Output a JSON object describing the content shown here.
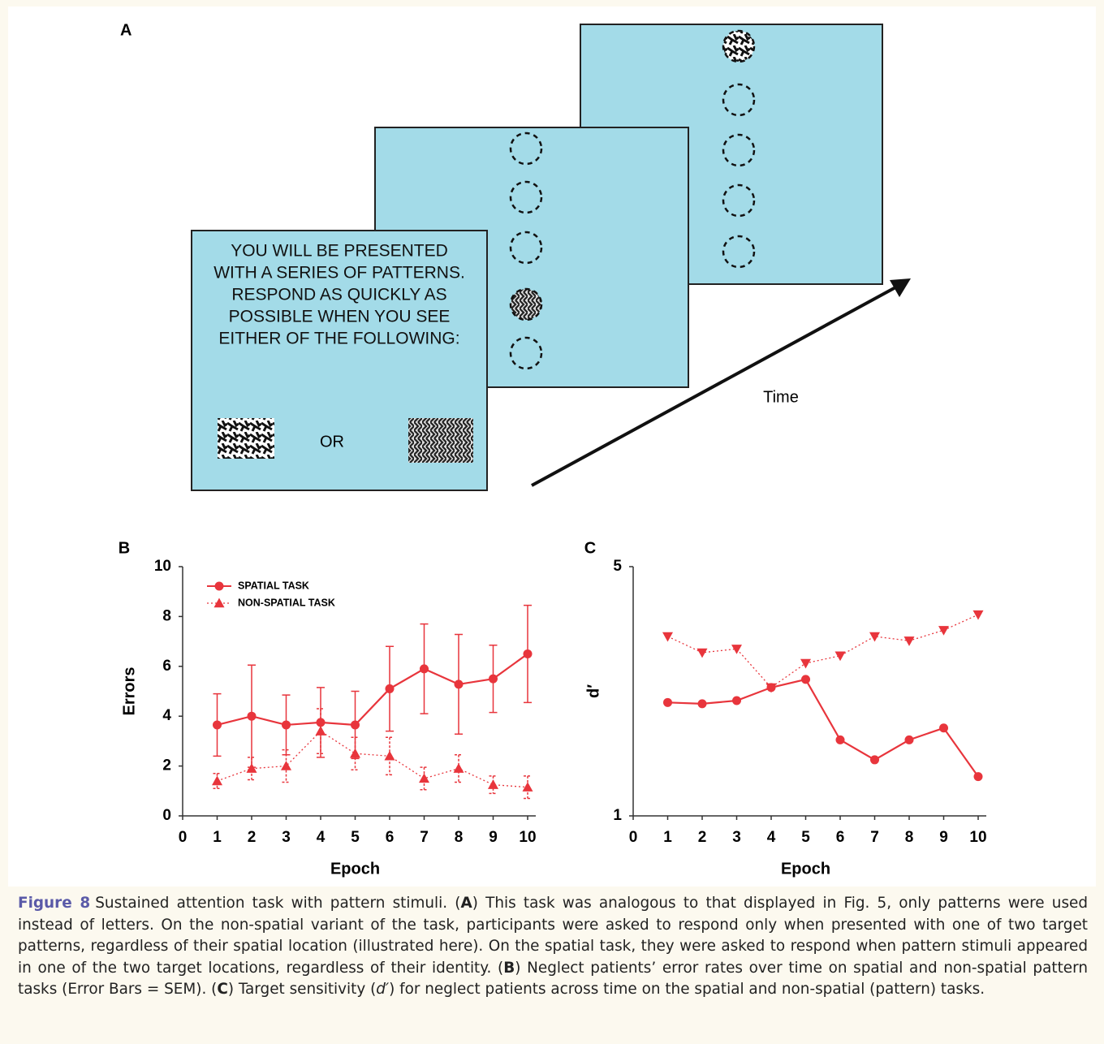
{
  "panel_a": {
    "label": "A",
    "instructions": [
      "YOU WILL BE PRESENTED",
      "WITH A SERIES OF PATTERNS.",
      "RESPOND AS QUICKLY AS",
      "POSSIBLE WHEN YOU SEE",
      "EITHER OF THE FOLLOWING:"
    ],
    "or": "OR",
    "time": "Time"
  },
  "chart_data": [
    {
      "type": "line",
      "panel": "B",
      "xlabel": "Epoch",
      "ylabel": "Errors",
      "x": [
        1,
        2,
        3,
        4,
        5,
        6,
        7,
        8,
        9,
        10
      ],
      "xlim": [
        0,
        10
      ],
      "xticks": [
        0,
        1,
        2,
        3,
        4,
        5,
        6,
        7,
        8,
        9,
        10
      ],
      "ylim": [
        0,
        10
      ],
      "yticks": [
        0,
        2,
        4,
        6,
        8,
        10
      ],
      "legend": "upper left",
      "series": [
        {
          "name": "SPATIAL TASK",
          "color": "#e8353c",
          "marker": "circle",
          "line": "solid",
          "values": [
            3.65,
            4.0,
            3.65,
            3.75,
            3.65,
            5.1,
            5.9,
            5.28,
            5.5,
            6.5
          ],
          "errors": [
            1.25,
            2.05,
            1.2,
            1.4,
            1.35,
            1.7,
            1.8,
            2.0,
            1.35,
            1.95
          ]
        },
        {
          "name": "NON-SPATIAL TASK",
          "color": "#e8353c",
          "marker": "triangle",
          "line": "dotted",
          "values": [
            1.4,
            1.9,
            2.0,
            3.4,
            2.5,
            2.4,
            1.5,
            1.9,
            1.25,
            1.15
          ],
          "errors": [
            0.3,
            0.45,
            0.65,
            0.9,
            0.65,
            0.75,
            0.45,
            0.55,
            0.35,
            0.45
          ]
        }
      ]
    },
    {
      "type": "line",
      "panel": "C",
      "xlabel": "Epoch",
      "ylabel": "d′",
      "x": [
        1,
        2,
        3,
        4,
        5,
        6,
        7,
        8,
        9,
        10
      ],
      "xlim": [
        0,
        10
      ],
      "xticks": [
        0,
        1,
        2,
        3,
        4,
        5,
        6,
        7,
        8,
        9,
        10
      ],
      "ylim": [
        1,
        5
      ],
      "yticks": [
        1,
        5
      ],
      "series": [
        {
          "color": "#e8353c",
          "marker": "circle",
          "line": "solid",
          "values": [
            2.82,
            2.8,
            2.85,
            3.06,
            3.19,
            2.22,
            1.9,
            2.22,
            2.41,
            1.63
          ]
        },
        {
          "color": "#e8353c",
          "marker": "triangle-down",
          "line": "dotted",
          "values": [
            3.88,
            3.62,
            3.68,
            3.06,
            3.45,
            3.57,
            3.88,
            3.81,
            3.98,
            4.23
          ]
        }
      ]
    }
  ],
  "caption": {
    "label": "Figure 8",
    "parts": [
      "Sustained attention task with pattern stimuli. (",
      "A",
      ") This task was analogous to that displayed in Fig. 5, only patterns were used instead of letters. On the non-spatial variant of the task, participants were asked to respond only when presented with one of two target patterns, regardless of their spatial location (illustrated here). On the spatial task, they were asked to respond when pattern stimuli appeared in one of the two target locations, regardless of their identity. (",
      "B",
      ") Neglect patients’ error rates over time on spatial and non-spatial pattern tasks (Error Bars = SEM). (",
      "C",
      ") Target sensitivity (",
      "d′",
      ") for neglect patients across time on the spatial and non-spatial (pattern) tasks."
    ]
  }
}
